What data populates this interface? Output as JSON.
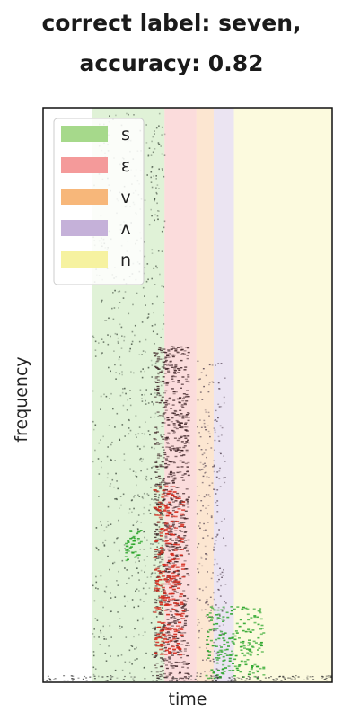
{
  "chart_data": {
    "type": "heatmap",
    "title_line1": "correct label: seven,",
    "title_line2": "accuracy: 0.82",
    "xlabel": "time",
    "ylabel": "frequency",
    "legend_placement": "top-left",
    "segments": [
      {
        "label": "s",
        "color": "#a6d98b",
        "start": 0.17,
        "end": 0.42
      },
      {
        "label": "ɛ",
        "color": "#f49a9a",
        "start": 0.42,
        "end": 0.53
      },
      {
        "label": "v",
        "color": "#f7b77a",
        "start": 0.53,
        "end": 0.59
      },
      {
        "label": "ʌ",
        "color": "#c5b1d9",
        "start": 0.59,
        "end": 0.66
      },
      {
        "label": "n",
        "color": "#f6f2a0",
        "start": 0.66,
        "end": 1.0
      }
    ]
  }
}
